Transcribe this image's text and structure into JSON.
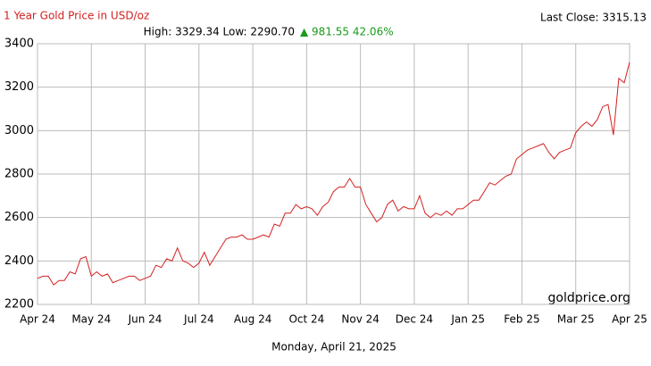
{
  "chart_data": {
    "type": "line",
    "title": "1 Year Gold Price in USD/oz",
    "last_close": "Last Close: 3315.13",
    "stats": "High: 3329.34 Low: 2290.70",
    "change": "▲ 981.55 42.06%",
    "watermark": "goldprice.org",
    "date": "Monday, April 21, 2025",
    "grid": true,
    "xlim": [
      0,
      110
    ],
    "xticks": [
      {
        "value": 0,
        "label": "Apr 24"
      },
      {
        "value": 10,
        "label": "May 24"
      },
      {
        "value": 20,
        "label": "Jun 24"
      },
      {
        "value": 30,
        "label": "Jul 24"
      },
      {
        "value": 40,
        "label": "Aug 24"
      },
      {
        "value": 50,
        "label": "Oct 24"
      },
      {
        "value": 60,
        "label": "Nov 24"
      },
      {
        "value": 70,
        "label": "Dec 24"
      },
      {
        "value": 80,
        "label": "Jan 25"
      },
      {
        "value": 90,
        "label": "Feb 25"
      },
      {
        "value": 100,
        "label": "Mar 25"
      },
      {
        "value": 110,
        "label": "Apr 25"
      }
    ],
    "ylim": [
      2200,
      3400
    ],
    "yticks": [
      2200,
      2400,
      2600,
      2800,
      3000,
      3200,
      3400
    ],
    "series": [
      {
        "color": "#d42020",
        "values": [
          2320,
          2330,
          2330,
          2290,
          2310,
          2310,
          2350,
          2340,
          2410,
          2420,
          2330,
          2350,
          2330,
          2340,
          2300,
          2310,
          2320,
          2330,
          2330,
          2310,
          2320,
          2330,
          2380,
          2370,
          2410,
          2400,
          2460,
          2400,
          2390,
          2370,
          2390,
          2440,
          2380,
          2420,
          2460,
          2500,
          2510,
          2510,
          2520,
          2500,
          2500,
          2510,
          2520,
          2510,
          2570,
          2560,
          2620,
          2620,
          2660,
          2640,
          2650,
          2640,
          2610,
          2650,
          2670,
          2720,
          2740,
          2740,
          2780,
          2740,
          2740,
          2660,
          2620,
          2580,
          2600,
          2660,
          2680,
          2630,
          2650,
          2640,
          2640,
          2700,
          2620,
          2600,
          2620,
          2610,
          2630,
          2610,
          2640,
          2640,
          2660,
          2680,
          2680,
          2720,
          2760,
          2750,
          2770,
          2790,
          2800,
          2870,
          2890,
          2910,
          2920,
          2930,
          2940,
          2900,
          2870,
          2900,
          2910,
          2920,
          2990,
          3020,
          3040,
          3020,
          3050,
          3110,
          3120,
          2980,
          3240,
          3220,
          3315
        ]
      }
    ]
  }
}
